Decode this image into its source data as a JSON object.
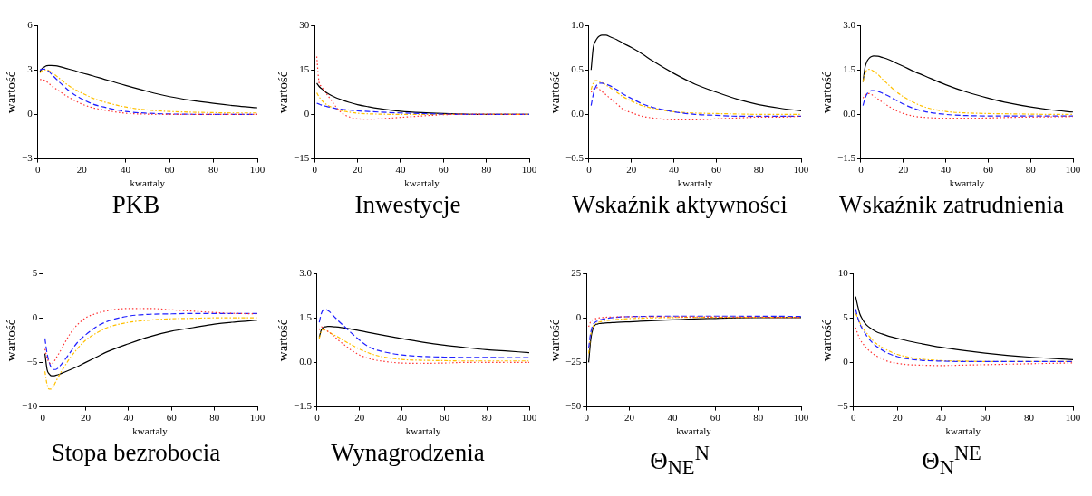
{
  "chart_data": [
    {
      "type": "line",
      "title": "PKB",
      "xlabel": "kwartaly",
      "ylabel": "wartość",
      "x": [
        1,
        2,
        3,
        4,
        5,
        6,
        8,
        10,
        13,
        16,
        20,
        25,
        30,
        40,
        50,
        60,
        70,
        80,
        90,
        100
      ],
      "xlim": [
        0,
        100
      ],
      "xticks": [
        0,
        20,
        40,
        60,
        80,
        100
      ],
      "ylim": [
        -3,
        6
      ],
      "yticks": [
        -3,
        0,
        3,
        6
      ],
      "grid": false,
      "legend": false,
      "marker": "none",
      "series": [
        {
          "color": "#000000",
          "line_style": "solid",
          "values": [
            2.9,
            3.1,
            3.2,
            3.28,
            3.3,
            3.3,
            3.28,
            3.22,
            3.1,
            2.98,
            2.8,
            2.6,
            2.38,
            1.95,
            1.55,
            1.2,
            0.95,
            0.75,
            0.58,
            0.45
          ]
        },
        {
          "color": "#ffc000",
          "line_style": "dashdot",
          "values": [
            2.8,
            2.95,
            3.0,
            3.0,
            2.95,
            2.85,
            2.65,
            2.4,
            2.05,
            1.75,
            1.45,
            1.1,
            0.85,
            0.5,
            0.3,
            0.2,
            0.15,
            0.12,
            0.1,
            0.1
          ]
        },
        {
          "color": "#2020ff",
          "line_style": "dashed",
          "values": [
            3.0,
            3.05,
            3.05,
            3.0,
            2.9,
            2.75,
            2.45,
            2.15,
            1.75,
            1.4,
            1.05,
            0.7,
            0.5,
            0.2,
            0.08,
            0.03,
            0.01,
            0,
            0,
            0
          ]
        },
        {
          "color": "#ff3333",
          "line_style": "dotted",
          "values": [
            2.35,
            2.35,
            2.3,
            2.2,
            2.1,
            1.95,
            1.75,
            1.55,
            1.25,
            1.0,
            0.7,
            0.45,
            0.3,
            0.08,
            0.02,
            0,
            0,
            0,
            0,
            0
          ]
        }
      ]
    },
    {
      "type": "line",
      "title": "Inwestycje",
      "xlabel": "kwartaly",
      "ylabel": "wartość",
      "x": [
        1,
        2,
        3,
        4,
        5,
        6,
        8,
        10,
        13,
        16,
        20,
        25,
        30,
        40,
        50,
        60,
        70,
        80,
        90,
        100
      ],
      "xlim": [
        0,
        100
      ],
      "xticks": [
        0,
        20,
        40,
        60,
        80,
        100
      ],
      "ylim": [
        -15,
        30
      ],
      "yticks": [
        -15,
        0,
        15,
        30
      ],
      "grid": false,
      "legend": false,
      "marker": "none",
      "series": [
        {
          "color": "#000000",
          "line_style": "solid",
          "values": [
            10.5,
            9.5,
            8.8,
            8.2,
            7.6,
            7.1,
            6.3,
            5.6,
            4.8,
            4.1,
            3.3,
            2.6,
            2.0,
            1.1,
            0.6,
            0.3,
            0.1,
            0,
            0,
            0
          ]
        },
        {
          "color": "#ffc000",
          "line_style": "dashdot",
          "values": [
            7.3,
            6,
            5,
            4.2,
            3.6,
            3.1,
            2.4,
            1.8,
            1.2,
            0.8,
            0.4,
            0.2,
            0.1,
            0,
            0,
            0,
            0,
            0,
            0,
            0
          ]
        },
        {
          "color": "#2020ff",
          "line_style": "dashed",
          "values": [
            3.8,
            3.5,
            3.2,
            3.0,
            2.8,
            2.6,
            2.3,
            2.0,
            1.7,
            1.5,
            1.2,
            1.0,
            0.8,
            0.5,
            0.3,
            0.1,
            0,
            0,
            0,
            0
          ]
        },
        {
          "color": "#ff3333",
          "line_style": "dotted",
          "values": [
            19.5,
            11,
            9.5,
            8.5,
            7.5,
            6.5,
            4.5,
            2.5,
            0.3,
            -0.8,
            -1.5,
            -1.6,
            -1.5,
            -1.0,
            -0.5,
            -0.1,
            0.1,
            0.1,
            0.05,
            0
          ]
        }
      ]
    },
    {
      "type": "line",
      "title": "Wskaźnik aktywności",
      "xlabel": "kwartaly",
      "ylabel": "wartość",
      "x": [
        1,
        2,
        3,
        4,
        5,
        6,
        8,
        10,
        13,
        16,
        20,
        25,
        30,
        40,
        50,
        60,
        70,
        80,
        90,
        100
      ],
      "xlim": [
        0,
        100
      ],
      "xticks": [
        0,
        20,
        40,
        60,
        80,
        100
      ],
      "ylim": [
        -0.5,
        1.0
      ],
      "yticks": [
        {
          "value": -0.5,
          "label": "−0.5"
        },
        {
          "value": 0,
          "label": "0.0"
        },
        {
          "value": 0.5,
          "label": "0.5"
        },
        {
          "value": 1,
          "label": "1.0"
        }
      ],
      "grid": false,
      "legend": false,
      "marker": "none",
      "series": [
        {
          "color": "#000000",
          "line_style": "solid",
          "values": [
            0.5,
            0.75,
            0.82,
            0.86,
            0.88,
            0.89,
            0.89,
            0.87,
            0.84,
            0.8,
            0.75,
            0.68,
            0.6,
            0.46,
            0.34,
            0.25,
            0.17,
            0.11,
            0.07,
            0.04
          ]
        },
        {
          "color": "#ffc000",
          "line_style": "dashdot",
          "values": [
            0.28,
            0.35,
            0.38,
            0.38,
            0.37,
            0.36,
            0.33,
            0.3,
            0.25,
            0.2,
            0.15,
            0.1,
            0.07,
            0.03,
            0.015,
            0.01,
            0.005,
            0,
            0,
            0
          ]
        },
        {
          "color": "#2020ff",
          "line_style": "dashed",
          "values": [
            0.1,
            0.22,
            0.3,
            0.34,
            0.35,
            0.35,
            0.34,
            0.32,
            0.28,
            0.23,
            0.18,
            0.12,
            0.08,
            0.03,
            0,
            -0.01,
            -0.02,
            -0.02,
            -0.02,
            -0.02
          ]
        },
        {
          "color": "#ff3333",
          "line_style": "dotted",
          "values": [
            0.25,
            0.28,
            0.3,
            0.3,
            0.28,
            0.26,
            0.22,
            0.18,
            0.12,
            0.06,
            0.02,
            -0.02,
            -0.04,
            -0.06,
            -0.06,
            -0.05,
            -0.04,
            -0.03,
            -0.03,
            -0.02
          ]
        }
      ]
    },
    {
      "type": "line",
      "title": "Wskaźnik zatrudnienia",
      "xlabel": "kwartaly",
      "ylabel": "wartość",
      "x": [
        1,
        2,
        3,
        4,
        5,
        6,
        8,
        10,
        13,
        16,
        20,
        25,
        30,
        40,
        50,
        60,
        70,
        80,
        90,
        100
      ],
      "xlim": [
        0,
        100
      ],
      "xticks": [
        0,
        20,
        40,
        60,
        80,
        100
      ],
      "ylim": [
        -1.5,
        3.0
      ],
      "yticks": [
        {
          "value": -1.5,
          "label": "−1.5"
        },
        {
          "value": 0,
          "label": "0.0"
        },
        {
          "value": 1.5,
          "label": "1.5"
        },
        {
          "value": 3,
          "label": "3.0"
        }
      ],
      "grid": false,
      "legend": false,
      "marker": "none",
      "series": [
        {
          "color": "#000000",
          "line_style": "solid",
          "values": [
            1.1,
            1.6,
            1.8,
            1.9,
            1.95,
            1.97,
            1.96,
            1.92,
            1.85,
            1.75,
            1.62,
            1.45,
            1.3,
            1.0,
            0.75,
            0.55,
            0.38,
            0.25,
            0.15,
            0.08
          ]
        },
        {
          "color": "#ffc000",
          "line_style": "dashdot",
          "values": [
            1.1,
            1.4,
            1.5,
            1.52,
            1.5,
            1.45,
            1.35,
            1.2,
            1.0,
            0.8,
            0.6,
            0.4,
            0.25,
            0.1,
            0.05,
            0.03,
            0.02,
            0.01,
            0,
            0
          ]
        },
        {
          "color": "#2020ff",
          "line_style": "dashed",
          "values": [
            0.3,
            0.55,
            0.7,
            0.77,
            0.8,
            0.8,
            0.78,
            0.72,
            0.62,
            0.5,
            0.35,
            0.2,
            0.1,
            0,
            -0.04,
            -0.05,
            -0.05,
            -0.05,
            -0.05,
            -0.05
          ]
        },
        {
          "color": "#ff3333",
          "line_style": "dotted",
          "values": [
            0.55,
            0.65,
            0.7,
            0.7,
            0.67,
            0.62,
            0.52,
            0.42,
            0.28,
            0.15,
            0.03,
            -0.06,
            -0.1,
            -0.13,
            -0.13,
            -0.12,
            -0.1,
            -0.09,
            -0.08,
            -0.07
          ]
        }
      ]
    },
    {
      "type": "line",
      "title": "Stopa bezrobocia",
      "xlabel": "kwartaly",
      "ylabel": "wartość",
      "x": [
        1,
        2,
        3,
        4,
        5,
        6,
        8,
        10,
        13,
        16,
        20,
        25,
        30,
        40,
        50,
        60,
        70,
        80,
        90,
        100
      ],
      "xlim": [
        0,
        100
      ],
      "xticks": [
        0,
        20,
        40,
        60,
        80,
        100
      ],
      "ylim": [
        -10,
        5
      ],
      "yticks": [
        -10,
        -5,
        0,
        5
      ],
      "grid": false,
      "legend": false,
      "marker": "none",
      "series": [
        {
          "color": "#000000",
          "line_style": "solid",
          "values": [
            -4,
            -5.8,
            -6.3,
            -6.5,
            -6.5,
            -6.45,
            -6.3,
            -6.1,
            -5.8,
            -5.5,
            -5.0,
            -4.4,
            -3.8,
            -2.9,
            -2.1,
            -1.5,
            -1.1,
            -0.7,
            -0.45,
            -0.25
          ]
        },
        {
          "color": "#ffc000",
          "line_style": "dashdot",
          "values": [
            -6,
            -7.5,
            -8.0,
            -8.0,
            -7.7,
            -7.2,
            -6.3,
            -5.5,
            -4.4,
            -3.5,
            -2.5,
            -1.7,
            -1.1,
            -0.5,
            -0.25,
            -0.1,
            -0.05,
            0,
            0,
            0
          ]
        },
        {
          "color": "#2020ff",
          "line_style": "dashed",
          "values": [
            -2.3,
            -4.0,
            -5.0,
            -5.6,
            -5.8,
            -5.8,
            -5.4,
            -4.8,
            -3.8,
            -2.8,
            -1.9,
            -1.0,
            -0.4,
            0.2,
            0.4,
            0.45,
            0.5,
            0.5,
            0.5,
            0.5
          ]
        },
        {
          "color": "#ff3333",
          "line_style": "dotted",
          "values": [
            -3.5,
            -4.5,
            -5.0,
            -5.2,
            -5.0,
            -4.6,
            -3.8,
            -2.9,
            -1.7,
            -0.8,
            0,
            0.5,
            0.8,
            1.05,
            1.05,
            0.9,
            0.75,
            0.6,
            0.5,
            0.45
          ]
        }
      ]
    },
    {
      "type": "line",
      "title": "Wynagrodzenia",
      "xlabel": "kwartaly",
      "ylabel": "wartość",
      "x": [
        1,
        2,
        3,
        4,
        5,
        6,
        8,
        10,
        13,
        16,
        20,
        25,
        30,
        40,
        50,
        60,
        70,
        80,
        90,
        100
      ],
      "xlim": [
        0,
        100
      ],
      "xticks": [
        0,
        20,
        40,
        60,
        80,
        100
      ],
      "ylim": [
        -1.5,
        3.0
      ],
      "yticks": [
        {
          "value": -1.5,
          "label": "−1.5"
        },
        {
          "value": 0,
          "label": "0.0"
        },
        {
          "value": 1.5,
          "label": "1.5"
        },
        {
          "value": 3,
          "label": "3.0"
        }
      ],
      "grid": false,
      "legend": false,
      "marker": "none",
      "series": [
        {
          "color": "#000000",
          "line_style": "solid",
          "values": [
            0.85,
            1.1,
            1.18,
            1.2,
            1.21,
            1.21,
            1.2,
            1.19,
            1.16,
            1.12,
            1.07,
            1.0,
            0.93,
            0.8,
            0.68,
            0.58,
            0.5,
            0.43,
            0.38,
            0.33
          ]
        },
        {
          "color": "#ffc000",
          "line_style": "dashdot",
          "values": [
            0.8,
            1.05,
            1.1,
            1.08,
            1.05,
            1.0,
            0.92,
            0.85,
            0.72,
            0.6,
            0.45,
            0.3,
            0.2,
            0.1,
            0.07,
            0.06,
            0.05,
            0.05,
            0.05,
            0.05
          ]
        },
        {
          "color": "#2020ff",
          "line_style": "dashed",
          "values": [
            1.35,
            1.65,
            1.77,
            1.78,
            1.75,
            1.7,
            1.55,
            1.4,
            1.2,
            1.0,
            0.75,
            0.5,
            0.38,
            0.25,
            0.2,
            0.18,
            0.17,
            0.17,
            0.16,
            0.16
          ]
        },
        {
          "color": "#ff3333",
          "line_style": "dotted",
          "values": [
            1.1,
            1.2,
            1.15,
            1.1,
            1.05,
            1.0,
            0.88,
            0.75,
            0.58,
            0.42,
            0.25,
            0.12,
            0.05,
            -0.02,
            -0.03,
            -0.02,
            0,
            0,
            0,
            0
          ]
        }
      ]
    },
    {
      "type": "line",
      "title": "Θ$_{NE}$$^{N}$",
      "xlabel": "kwartaly",
      "ylabel": "wartość",
      "x": [
        1,
        2,
        3,
        4,
        5,
        6,
        8,
        10,
        13,
        16,
        20,
        25,
        30,
        40,
        50,
        60,
        70,
        80,
        90,
        100
      ],
      "xlim": [
        0,
        100
      ],
      "xticks": [
        0,
        20,
        40,
        60,
        80,
        100
      ],
      "ylim": [
        -50,
        25
      ],
      "yticks": [
        -50,
        -25,
        0,
        25
      ],
      "grid": false,
      "legend": false,
      "marker": "none",
      "series": [
        {
          "color": "#000000",
          "line_style": "solid",
          "values": [
            -25,
            -12,
            -6,
            -4,
            -3.5,
            -3.2,
            -3,
            -2.8,
            -2.6,
            -2.4,
            -2.2,
            -1.9,
            -1.6,
            -1.1,
            -0.6,
            -0.3,
            0,
            0.1,
            0.2,
            0.2
          ]
        },
        {
          "color": "#ffc000",
          "line_style": "dashdot",
          "values": [
            -20,
            -9,
            -5,
            -3.5,
            -2.8,
            -2.3,
            -1.8,
            -1.4,
            -1.0,
            -0.7,
            -0.4,
            -0.2,
            0,
            0.2,
            0.3,
            0.3,
            0.3,
            0.3,
            0.3,
            0.3
          ]
        },
        {
          "color": "#2020ff",
          "line_style": "dashed",
          "values": [
            -17,
            -8,
            -4,
            -2.5,
            -1.8,
            -1.2,
            -0.6,
            -0.2,
            0.2,
            0.5,
            0.7,
            0.8,
            0.9,
            1.0,
            1.0,
            1.0,
            1.0,
            0.9,
            0.9,
            0.8
          ]
        },
        {
          "color": "#ff3333",
          "line_style": "dotted",
          "values": [
            -5,
            -2,
            -1,
            -0.5,
            -0.2,
            0,
            0.2,
            0.4,
            0.5,
            0.6,
            0.6,
            0.6,
            0.6,
            0.6,
            0.5,
            0.5,
            0.4,
            0.4,
            0.3,
            0.3
          ]
        }
      ]
    },
    {
      "type": "line",
      "title": "Θ$_{N}$$^{NE}$",
      "xlabel": "kwartaly",
      "ylabel": "wartość",
      "x": [
        1,
        2,
        3,
        4,
        5,
        6,
        8,
        10,
        13,
        16,
        20,
        25,
        30,
        40,
        50,
        60,
        70,
        80,
        90,
        100
      ],
      "xlim": [
        0,
        100
      ],
      "xticks": [
        0,
        20,
        40,
        60,
        80,
        100
      ],
      "ylim": [
        -5,
        10
      ],
      "yticks": [
        -5,
        0,
        5,
        10
      ],
      "grid": false,
      "legend": false,
      "marker": "none",
      "series": [
        {
          "color": "#000000",
          "line_style": "solid",
          "values": [
            7.4,
            6.3,
            5.4,
            4.9,
            4.5,
            4.2,
            3.8,
            3.5,
            3.2,
            2.95,
            2.7,
            2.4,
            2.15,
            1.7,
            1.35,
            1.05,
            0.8,
            0.6,
            0.45,
            0.3
          ]
        },
        {
          "color": "#ffc000",
          "line_style": "dashdot",
          "values": [
            5.5,
            5.0,
            4.4,
            4.0,
            3.6,
            3.3,
            2.7,
            2.2,
            1.7,
            1.3,
            0.9,
            0.6,
            0.4,
            0.2,
            0.15,
            0.1,
            0.1,
            0.1,
            0.1,
            0.1
          ]
        },
        {
          "color": "#2020ff",
          "line_style": "dashed",
          "values": [
            6.0,
            5.0,
            4.3,
            3.8,
            3.4,
            3.0,
            2.4,
            1.9,
            1.4,
            1.0,
            0.65,
            0.4,
            0.25,
            0.15,
            0.1,
            0.1,
            0.1,
            0.1,
            0.1,
            0.1
          ]
        },
        {
          "color": "#ff3333",
          "line_style": "dotted",
          "values": [
            3.9,
            3.2,
            2.6,
            2.2,
            1.9,
            1.6,
            1.15,
            0.8,
            0.4,
            0.1,
            -0.1,
            -0.25,
            -0.3,
            -0.35,
            -0.3,
            -0.25,
            -0.2,
            -0.15,
            -0.1,
            -0.05
          ]
        }
      ]
    }
  ]
}
